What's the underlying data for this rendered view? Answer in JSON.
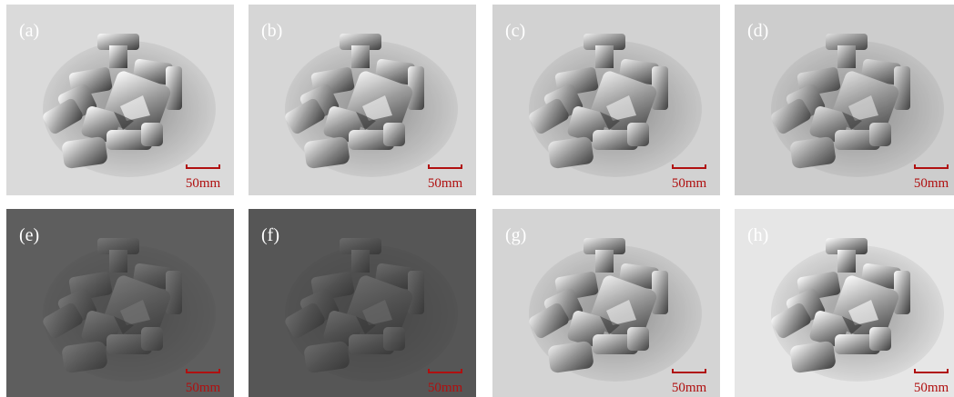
{
  "panels": [
    {
      "label": "(a)",
      "scale": "50mm"
    },
    {
      "label": "(b)",
      "scale": "50mm"
    },
    {
      "label": "(c)",
      "scale": "50mm"
    },
    {
      "label": "(d)",
      "scale": "50mm"
    },
    {
      "label": "(e)",
      "scale": "50mm"
    },
    {
      "label": "(f)",
      "scale": "50mm"
    },
    {
      "label": "(g)",
      "scale": "50mm"
    },
    {
      "label": "(h)",
      "scale": "50mm"
    }
  ]
}
